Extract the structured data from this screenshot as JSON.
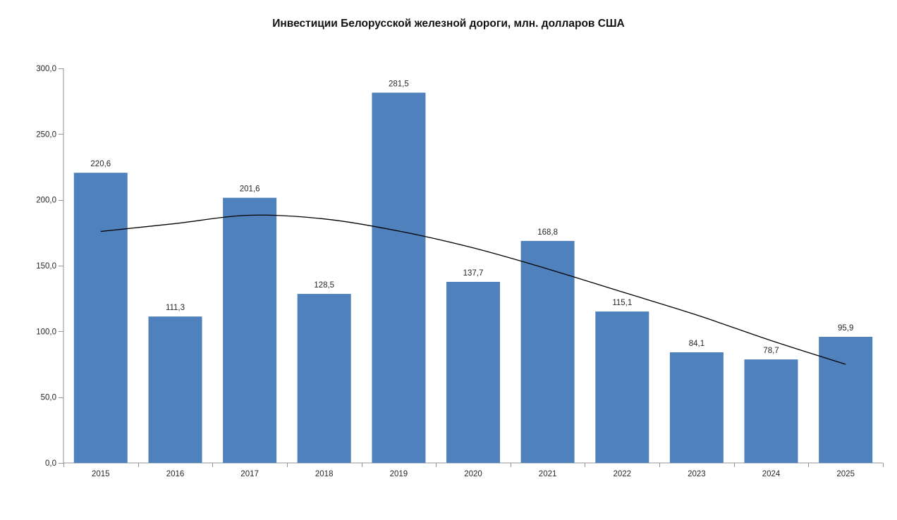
{
  "page": {
    "background": "#ffffff"
  },
  "chart_data": {
    "type": "bar",
    "title": "Инвестиции Белорусской железной дороги, млн. долларов США",
    "categories": [
      "2015",
      "2016",
      "2017",
      "2018",
      "2019",
      "2020",
      "2021",
      "2022",
      "2023",
      "2024",
      "2025"
    ],
    "values": [
      220.6,
      111.3,
      201.6,
      128.5,
      281.5,
      137.7,
      168.8,
      115.1,
      84.1,
      78.7,
      95.9
    ],
    "value_labels": [
      "220,6",
      "111,3",
      "201,6",
      "128,5",
      "281,5",
      "137,7",
      "168,8",
      "115,1",
      "84,1",
      "78,7",
      "95,9"
    ],
    "y_axis": {
      "min": 0,
      "max": 300,
      "step": 50,
      "tick_labels": [
        "0,0",
        "50,0",
        "100,0",
        "150,0",
        "200,0",
        "250,0",
        "300,0"
      ]
    },
    "ylim": [
      0,
      300
    ],
    "grid": false,
    "legend": false,
    "trendline": {
      "values": [
        176.0,
        182.0,
        188.3,
        185.5,
        176.3,
        163.5,
        147.5,
        130.0,
        112.5,
        93.0,
        75.0
      ],
      "color": "#000000"
    },
    "colors": {
      "bar": "#4F81BD",
      "axis": "#949494",
      "text": "#262626",
      "title": "#111111"
    }
  }
}
